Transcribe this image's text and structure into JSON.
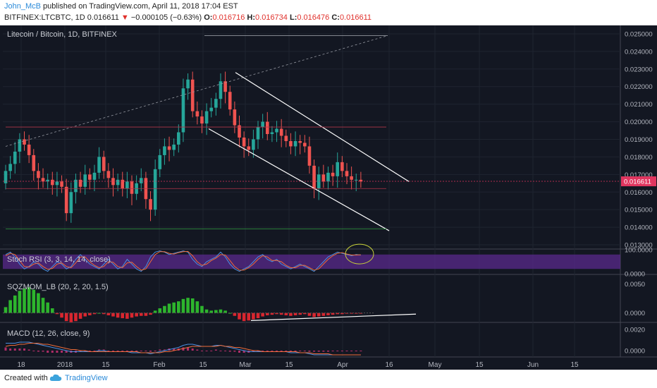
{
  "header": {
    "author": "John_McB",
    "published": "published on TradingView.com, April 11, 2018 17:04 EST",
    "symbol": "BITFINEX:LTCBTC, 1D",
    "last": "0.016611",
    "arrow": "▼",
    "change": "−0.000105 (−0.63%)",
    "o_label": "O:",
    "o_value": "0.016716",
    "h_label": "H:",
    "h_value": "0.016734",
    "l_label": "L:",
    "l_value": "0.016476",
    "c_label": "C:",
    "c_value": "0.016611"
  },
  "footer": {
    "created": "Created with",
    "brand": "TradingView"
  },
  "colors": {
    "background": "#131722",
    "up": "#26a69a",
    "down": "#ef5350",
    "rsi_band": "#5a2a8c",
    "hist_up": "#2db52d",
    "hist_down": "#d9262f",
    "price_tag": "#e0355f"
  },
  "chart_data": [
    {
      "type": "candlestick",
      "title": "Litecoin / Bitcoin, 1D, BITFINEX",
      "ylim": [
        0.0128,
        0.0254
      ],
      "y_ticks": [
        "0.025000",
        "0.024000",
        "0.023000",
        "0.022000",
        "0.021000",
        "0.020000",
        "0.019000",
        "0.018000",
        "0.017000",
        "0.016000",
        "0.015000",
        "0.014000",
        "0.013000"
      ],
      "last_price": "0.016611",
      "x_labels": [
        "18",
        "2018",
        "15",
        "Feb",
        "15",
        "Mar",
        "15",
        "Apr",
        "16",
        "May",
        "15",
        "Jun",
        "15"
      ],
      "close": [
        0.0172,
        0.0176,
        0.0183,
        0.019,
        0.0187,
        0.0181,
        0.0172,
        0.0168,
        0.0166,
        0.0167,
        0.0164,
        0.0166,
        0.0163,
        0.0148,
        0.016,
        0.0167,
        0.0163,
        0.017,
        0.0167,
        0.0171,
        0.018,
        0.0172,
        0.0168,
        0.0164,
        0.0167,
        0.0162,
        0.0166,
        0.0159,
        0.0165,
        0.0168,
        0.0156,
        0.015,
        0.0173,
        0.0181,
        0.0186,
        0.0184,
        0.0187,
        0.0194,
        0.0219,
        0.0224,
        0.0206,
        0.0203,
        0.0199,
        0.0206,
        0.0208,
        0.0213,
        0.0223,
        0.0217,
        0.0207,
        0.0198,
        0.0191,
        0.0186,
        0.0184,
        0.019,
        0.0197,
        0.02,
        0.0193,
        0.0194,
        0.0196,
        0.0192,
        0.0189,
        0.0186,
        0.0189,
        0.0188,
        0.0186,
        0.0175,
        0.0162,
        0.017,
        0.0166,
        0.0171,
        0.0169,
        0.0177,
        0.0172,
        0.0169,
        0.0167,
        0.0167,
        0.0166
      ]
    },
    {
      "type": "line",
      "title": "Stoch RSI (3, 3, 14, 14, close)",
      "ylim": [
        0,
        100
      ],
      "y_ticks": [
        "100.0000",
        "0.0000"
      ],
      "series": [
        {
          "name": "K",
          "values": [
            80,
            90,
            70,
            40,
            20,
            30,
            50,
            40,
            20,
            10,
            30,
            50,
            40,
            20,
            30,
            60,
            80,
            60,
            40,
            30,
            20,
            40,
            60,
            40,
            20,
            30,
            60,
            40,
            20,
            10,
            30,
            70,
            90,
            95,
            90,
            80,
            85,
            90,
            95,
            90,
            60,
            40,
            30,
            50,
            60,
            70,
            90,
            70,
            40,
            20,
            10,
            20,
            30,
            50,
            70,
            80,
            60,
            50,
            60,
            40,
            30,
            20,
            30,
            40,
            30,
            20,
            10,
            30,
            50,
            70,
            80,
            90,
            85,
            80,
            75,
            80,
            78
          ]
        },
        {
          "name": "D",
          "values": [
            75,
            85,
            80,
            55,
            30,
            28,
            40,
            45,
            30,
            18,
            22,
            40,
            45,
            30,
            25,
            45,
            70,
            70,
            50,
            35,
            25,
            30,
            50,
            48,
            30,
            25,
            45,
            48,
            30,
            15,
            20,
            50,
            80,
            92,
            92,
            85,
            82,
            88,
            92,
            93,
            75,
            50,
            35,
            40,
            55,
            65,
            80,
            78,
            55,
            30,
            15,
            15,
            25,
            40,
            60,
            75,
            70,
            55,
            55,
            50,
            35,
            25,
            25,
            35,
            35,
            25,
            15,
            20,
            40,
            60,
            75,
            85,
            88,
            82,
            78,
            78,
            79
          ]
        }
      ]
    },
    {
      "type": "bar",
      "title": "SQZMOM_LB (20, 2, 20, 1.5)",
      "ylim": [
        -0.0015,
        0.0065
      ],
      "y_ticks": [
        "0.0050",
        "0.0000"
      ],
      "values": [
        0.001,
        0.0022,
        0.003,
        0.0038,
        0.0042,
        0.0044,
        0.004,
        0.0034,
        0.0026,
        0.0018,
        0.0008,
        -0.0002,
        -0.0008,
        -0.0014,
        -0.0016,
        -0.0014,
        -0.001,
        -0.0006,
        -0.0004,
        -0.0002,
        0.0,
        -0.0002,
        -0.0004,
        -0.0006,
        -0.0008,
        -0.0009,
        -0.001,
        -0.0008,
        -0.0006,
        -0.0005,
        -0.0005,
        -0.0003,
        0.0004,
        0.0008,
        0.0012,
        0.0016,
        0.0018,
        0.002,
        0.0024,
        0.0026,
        0.0025,
        0.002,
        0.0012,
        0.0006,
        0.0004,
        0.0005,
        0.0006,
        0.0004,
        0.0,
        -0.0005,
        -0.0011,
        -0.0014,
        -0.0013,
        -0.0011,
        -0.0009,
        -0.0006,
        -0.0004,
        -0.0003,
        -0.0002,
        -0.0003,
        -0.0004,
        -0.0005,
        -0.0004,
        -0.0003,
        -0.0002,
        -0.0005,
        -0.0007,
        -0.0006,
        -0.0005,
        -0.0004,
        -0.0003,
        -0.0002,
        -0.0002,
        -0.0001,
        -0.0001,
        -0.0001,
        -0.0001
      ]
    },
    {
      "type": "line",
      "title": "MACD (12, 26, close, 9)",
      "ylim": [
        -0.0006,
        0.0026
      ],
      "y_ticks": [
        "0.0020",
        "0.0000"
      ],
      "series": [
        {
          "name": "MACD",
          "values": [
            0.0007,
            0.0007,
            0.0007,
            0.0008,
            0.0008,
            0.0008,
            0.0007,
            0.0006,
            0.0005,
            0.0004,
            0.0003,
            0.0002,
            0.0001,
            0.0,
            -0.0001,
            -0.0001,
            -0.0001,
            -0.0001,
            -0.0001,
            -0.0001,
            0.0,
            0.0,
            -0.0001,
            -0.0001,
            -0.0001,
            -0.0001,
            -0.0001,
            -0.0002,
            -0.0002,
            -0.0002,
            -0.0002,
            -0.0003,
            -0.0002,
            -0.0001,
            0.0,
            0.0001,
            0.0002,
            0.0003,
            0.0005,
            0.0006,
            0.0006,
            0.0005,
            0.0004,
            0.0004,
            0.0004,
            0.0005,
            0.0005,
            0.0004,
            0.0003,
            0.0002,
            0.0001,
            0.0,
            -0.0001,
            -0.0001,
            -0.0001,
            -0.0001,
            -0.0001,
            -0.0001,
            -0.0001,
            -0.0001,
            -0.0001,
            -0.0002,
            -0.0002,
            -0.0002,
            -0.0002,
            -0.0003,
            -0.0004,
            -0.0004,
            -0.0004,
            -0.0004,
            -0.0004,
            -0.0004,
            -0.0004,
            -0.0004,
            -0.0004,
            -0.0004,
            -0.0004
          ]
        },
        {
          "name": "Signal",
          "values": [
            0.0004,
            0.0005,
            0.0005,
            0.0006,
            0.0006,
            0.0007,
            0.0007,
            0.0007,
            0.0006,
            0.0006,
            0.0005,
            0.0004,
            0.0003,
            0.0002,
            0.0001,
            0.0001,
            0.0,
            0.0,
            -0.0001,
            -0.0001,
            -0.0001,
            -0.0001,
            -0.0001,
            -0.0001,
            -0.0001,
            -0.0001,
            -0.0001,
            -0.0001,
            -0.0001,
            -0.0002,
            -0.0002,
            -0.0002,
            -0.0002,
            -0.0002,
            -0.0001,
            -0.0001,
            0.0,
            0.0001,
            0.0002,
            0.0003,
            0.0004,
            0.0004,
            0.0004,
            0.0004,
            0.0004,
            0.0004,
            0.0005,
            0.0004,
            0.0004,
            0.0003,
            0.0003,
            0.0002,
            0.0001,
            0.0,
            0.0,
            -0.0001,
            -0.0001,
            -0.0001,
            -0.0001,
            -0.0001,
            -0.0001,
            -0.0001,
            -0.0001,
            -0.0002,
            -0.0002,
            -0.0002,
            -0.0003,
            -0.0003,
            -0.0003,
            -0.0003,
            -0.0004,
            -0.0004,
            -0.0004,
            -0.0004,
            -0.0004,
            -0.0004,
            -0.0004
          ]
        }
      ]
    }
  ]
}
